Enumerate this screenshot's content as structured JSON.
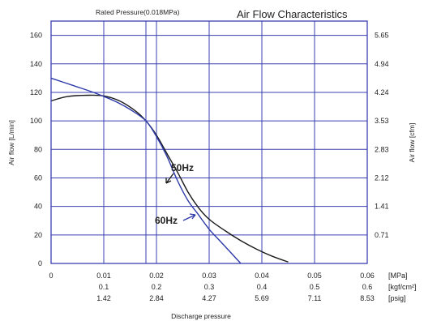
{
  "chart_data": {
    "type": "line",
    "title": "Air Flow Characteristics",
    "rated_pressure_label": "Rated Pressure(0.018MPa)",
    "rated_pressure_mpa": 0.018,
    "xlabel": "Discharge pressure",
    "ylabel_left": "Air flow [L/min]",
    "ylabel_right": "Air flow [cfm]",
    "xlim": [
      0,
      0.06
    ],
    "ylim": [
      0,
      170
    ],
    "grid": true,
    "x_ticks": [
      {
        "value": 0,
        "mpa": "0",
        "kgf": "",
        "psig": ""
      },
      {
        "value": 0.01,
        "mpa": "0.01",
        "kgf": "0.1",
        "psig": "1.42"
      },
      {
        "value": 0.02,
        "mpa": "0.02",
        "kgf": "0.2",
        "psig": "2.84"
      },
      {
        "value": 0.03,
        "mpa": "0.03",
        "kgf": "0.3",
        "psig": "4.27"
      },
      {
        "value": 0.04,
        "mpa": "0.04",
        "kgf": "0.4",
        "psig": "5.69"
      },
      {
        "value": 0.05,
        "mpa": "0.05",
        "kgf": "0.5",
        "psig": "7.11"
      },
      {
        "value": 0.06,
        "mpa": "0.06",
        "kgf": "0.6",
        "psig": "8.53"
      }
    ],
    "x_unit_labels": [
      "[MPa]",
      "[kgf/cm²]",
      "[psig]"
    ],
    "y_ticks_left": [
      "0",
      "20",
      "40",
      "60",
      "80",
      "100",
      "120",
      "140",
      "160"
    ],
    "y_ticks_right": [
      "0.71",
      "1.41",
      "2.12",
      "2.83",
      "3.53",
      "4.24",
      "4.94",
      "5.65"
    ],
    "y_ticks_right_values": [
      20,
      40,
      60,
      80,
      100,
      120,
      140,
      160
    ],
    "series": [
      {
        "name": "50Hz",
        "color": "#1a1a1a",
        "points": [
          [
            0,
            114
          ],
          [
            0.003,
            117
          ],
          [
            0.007,
            118
          ],
          [
            0.01,
            117.5
          ],
          [
            0.013,
            114
          ],
          [
            0.016,
            107
          ],
          [
            0.018,
            100
          ],
          [
            0.02,
            90
          ],
          [
            0.022,
            77
          ],
          [
            0.024,
            64
          ],
          [
            0.026,
            50
          ],
          [
            0.028,
            39
          ],
          [
            0.03,
            31
          ],
          [
            0.033,
            23
          ],
          [
            0.036,
            16
          ],
          [
            0.039,
            10
          ],
          [
            0.042,
            5
          ],
          [
            0.045,
            1
          ]
        ]
      },
      {
        "name": "60Hz",
        "color": "#2d3aa8",
        "points": [
          [
            0,
            130
          ],
          [
            0.004,
            125
          ],
          [
            0.008,
            120
          ],
          [
            0.012,
            114
          ],
          [
            0.015,
            108
          ],
          [
            0.018,
            100
          ],
          [
            0.02,
            89
          ],
          [
            0.022,
            75
          ],
          [
            0.024,
            58
          ],
          [
            0.026,
            44
          ],
          [
            0.028,
            34
          ],
          [
            0.03,
            24
          ],
          [
            0.032,
            16
          ],
          [
            0.034,
            8
          ],
          [
            0.036,
            0
          ]
        ]
      }
    ],
    "annotations": [
      {
        "text": "50Hz",
        "x": 0.024,
        "y": 74,
        "color": "#1a1a1a"
      },
      {
        "text": "60Hz",
        "x": 0.021,
        "y": 33,
        "color": "#2d3aa8"
      }
    ]
  }
}
